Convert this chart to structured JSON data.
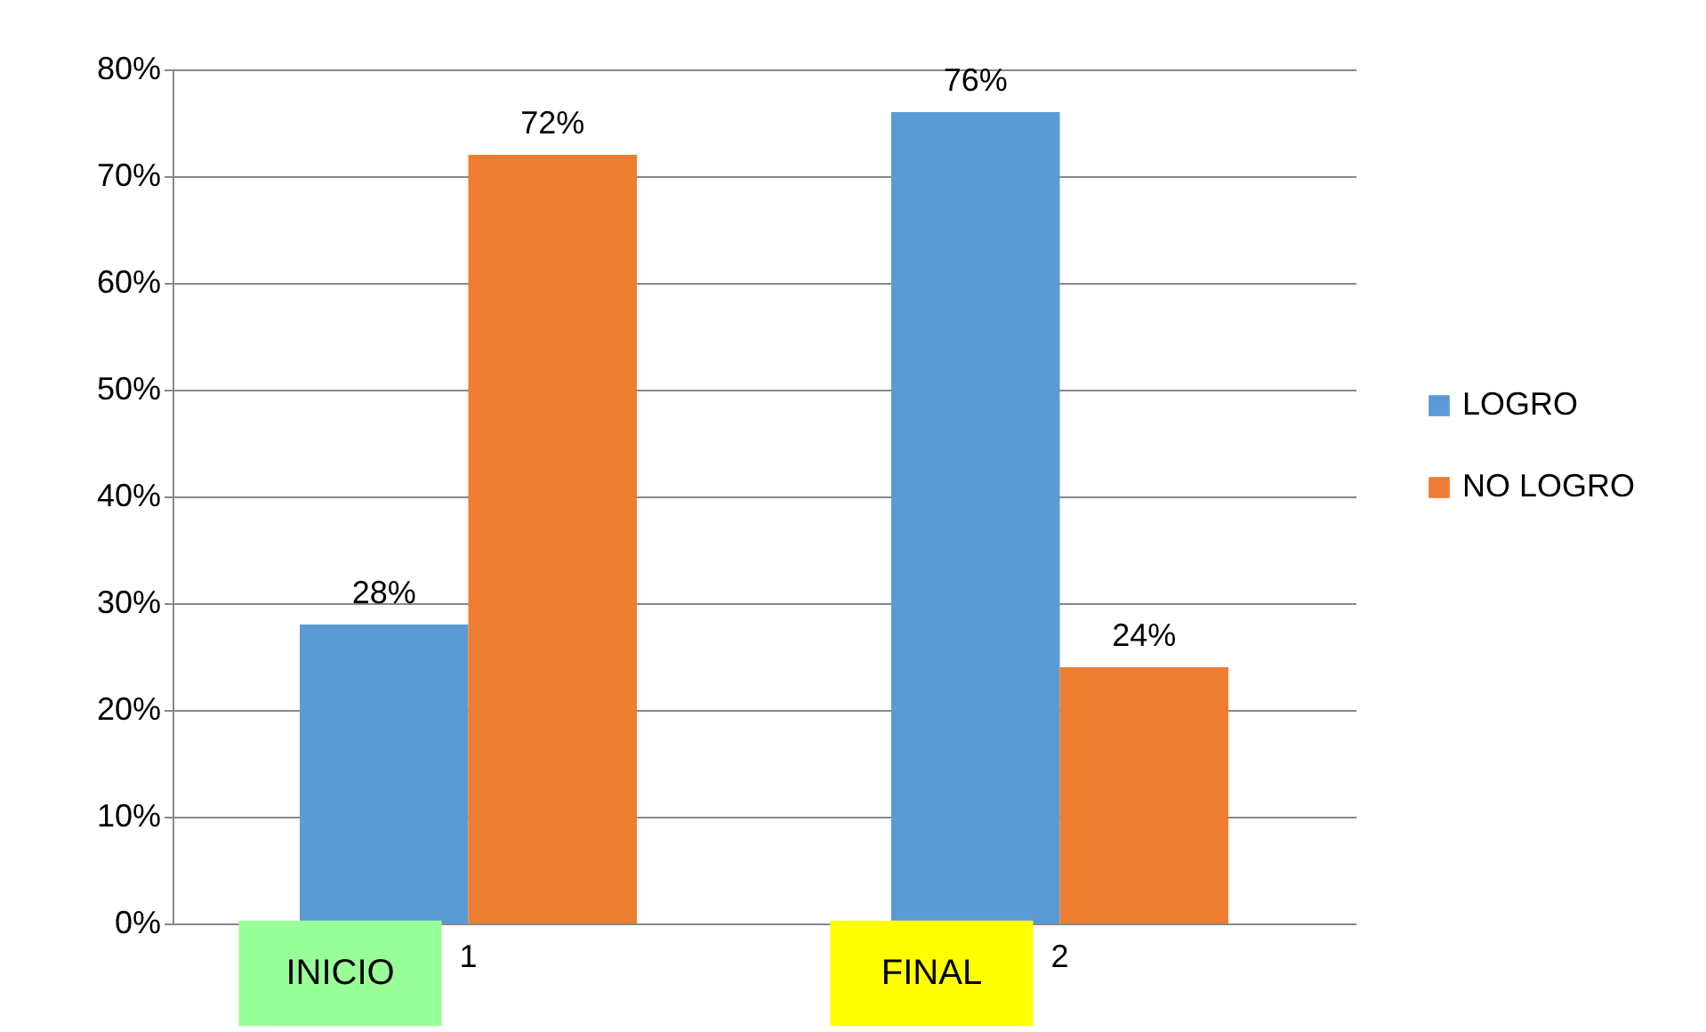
{
  "chart_data": {
    "type": "bar",
    "categories": [
      "1",
      "2"
    ],
    "series": [
      {
        "name": "LOGRO",
        "color": "#5b9bd5",
        "values": [
          28,
          76
        ],
        "value_labels": [
          "28%",
          "76%"
        ]
      },
      {
        "name": "NO LOGRO",
        "color": "#ed7d31",
        "values": [
          72,
          24
        ],
        "value_labels": [
          "72%",
          "24%"
        ]
      }
    ],
    "ylim": [
      0,
      80
    ],
    "yticks": [
      {
        "value": 0,
        "label": "0%"
      },
      {
        "value": 10,
        "label": "10%"
      },
      {
        "value": 20,
        "label": "20%"
      },
      {
        "value": 30,
        "label": "30%"
      },
      {
        "value": 40,
        "label": "40%"
      },
      {
        "value": 50,
        "label": "50%"
      },
      {
        "value": 60,
        "label": "60%"
      },
      {
        "value": 70,
        "label": "70%"
      },
      {
        "value": 80,
        "label": "80%"
      }
    ],
    "grid": "y",
    "legend": "right",
    "annotations": [
      "INICIO",
      "FINAL"
    ]
  }
}
